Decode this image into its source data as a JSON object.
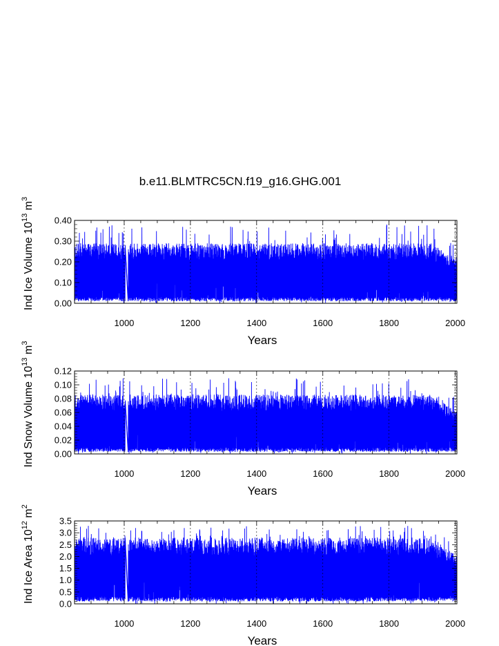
{
  "chart_data": [
    {
      "type": "line",
      "title": "b.e11.BLMTRC5CN.f19_g16.GHG.001",
      "xlabel": "Years",
      "ylabel": {
        "base": "Ind Ice Volume 10",
        "exp1": "13",
        "mid": " m",
        "exp2": "3"
      },
      "xlim": [
        850,
        2005
      ],
      "ylim": [
        0.0,
        0.4
      ],
      "xticks": [
        1000,
        1200,
        1400,
        1600,
        1800,
        2000
      ],
      "yticks": [
        "0.00",
        "0.10",
        "0.20",
        "0.30",
        "0.40"
      ],
      "ytick_values": [
        0.0,
        0.1,
        0.2,
        0.3,
        0.4
      ],
      "grid": "vertical-dashed",
      "color": "#0000ff",
      "series": {
        "baseline": 0.01,
        "typical_peak": 0.29,
        "max_peak": 0.38,
        "min_trough": 0.0,
        "gap_years": [
          1003,
          1012
        ]
      }
    },
    {
      "type": "line",
      "title": "",
      "xlabel": "Years",
      "ylabel": {
        "base": "Ind Snow Volume 10",
        "exp1": "13",
        "mid": " m",
        "exp2": "3"
      },
      "xlim": [
        850,
        2005
      ],
      "ylim": [
        0.0,
        0.12
      ],
      "xticks": [
        1000,
        1200,
        1400,
        1600,
        1800,
        2000
      ],
      "yticks": [
        "0.00",
        "0.02",
        "0.04",
        "0.06",
        "0.08",
        "0.10",
        "0.12"
      ],
      "ytick_values": [
        0.0,
        0.02,
        0.04,
        0.06,
        0.08,
        0.1,
        0.12
      ],
      "grid": "vertical-dashed",
      "color": "#0000ff",
      "series": {
        "baseline": 0.003,
        "typical_peak": 0.086,
        "max_peak": 0.11,
        "min_trough": 0.0,
        "gap_years": [
          1003,
          1012
        ]
      }
    },
    {
      "type": "line",
      "title": "",
      "xlabel": "Years",
      "ylabel": {
        "base": "Ind Ice Area 10",
        "exp1": "12",
        "mid": " m",
        "exp2": "2"
      },
      "xlim": [
        850,
        2005
      ],
      "ylim": [
        0.0,
        3.5
      ],
      "xticks": [
        1000,
        1200,
        1400,
        1600,
        1800,
        2000
      ],
      "yticks": [
        "0.0",
        "0.5",
        "1.0",
        "1.5",
        "2.0",
        "2.5",
        "3.0",
        "3.5"
      ],
      "ytick_values": [
        0.0,
        0.5,
        1.0,
        1.5,
        2.0,
        2.5,
        3.0,
        3.5
      ],
      "grid": "vertical-dashed",
      "color": "#0000ff",
      "series": {
        "baseline": 0.1,
        "typical_peak": 2.8,
        "max_peak": 3.3,
        "min_trough": 0.0,
        "gap_years": [
          1003,
          1012
        ]
      }
    }
  ]
}
